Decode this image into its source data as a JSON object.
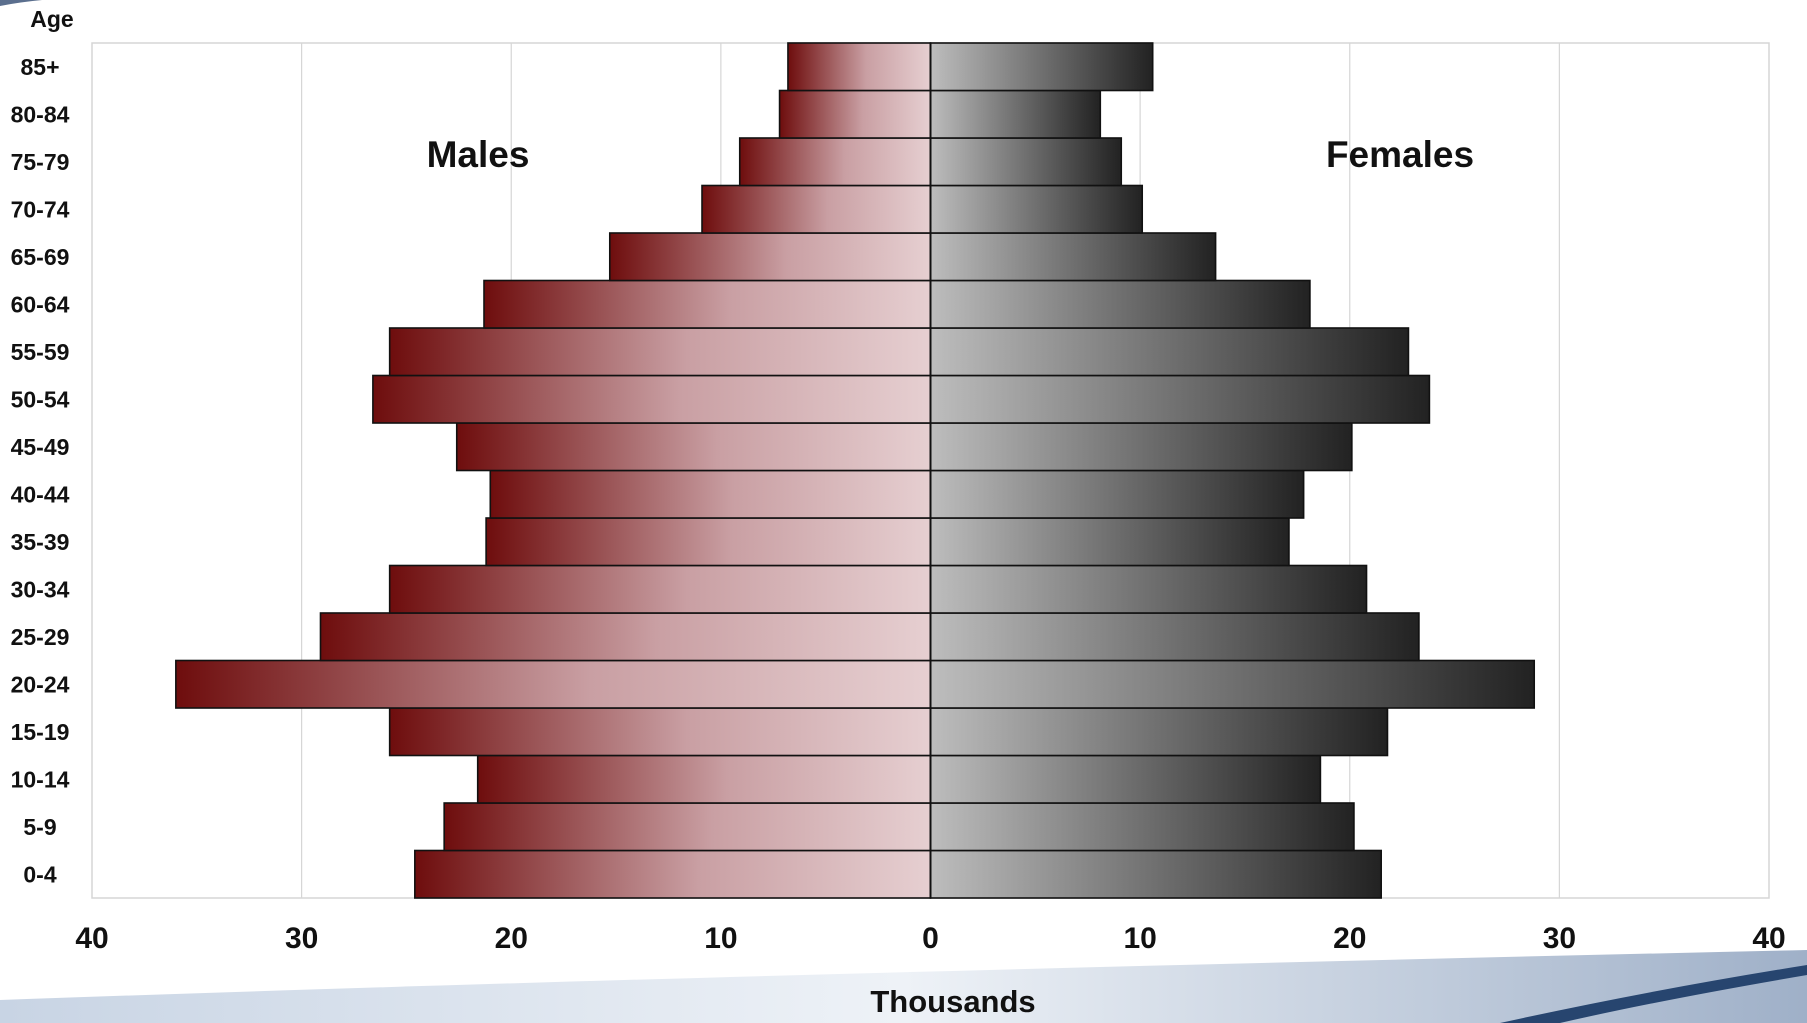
{
  "chart_data": {
    "type": "bar",
    "orientation": "horizontal",
    "variant": "population-pyramid",
    "title": "",
    "ylabel": "Age",
    "xlabel": "Thousands",
    "xlim": [
      -40,
      40
    ],
    "xticks": [
      -40,
      -30,
      -20,
      -10,
      0,
      10,
      20,
      30,
      40
    ],
    "xtick_labels": [
      "40",
      "30",
      "20",
      "10",
      "0",
      "10",
      "20",
      "30",
      "40"
    ],
    "grid": true,
    "categories": [
      "0-4",
      "5-9",
      "10-14",
      "15-19",
      "20-24",
      "25-29",
      "30-34",
      "35-39",
      "40-44",
      "45-49",
      "50-54",
      "55-59",
      "60-64",
      "65-69",
      "70-74",
      "75-79",
      "80-84",
      "85+"
    ],
    "series": [
      {
        "name": "Males",
        "color_dark": "#6e0d0d",
        "color_light": "#e6cfd1",
        "values": [
          24.6,
          23.2,
          21.6,
          25.8,
          36.0,
          29.1,
          25.8,
          21.2,
          21.0,
          22.6,
          26.6,
          25.8,
          21.3,
          15.3,
          10.9,
          9.1,
          7.2,
          6.8
        ]
      },
      {
        "name": "Females",
        "color_dark": "#222222",
        "color_light": "#bdbdbd",
        "values": [
          21.5,
          20.2,
          18.6,
          21.8,
          28.8,
          23.3,
          20.8,
          17.1,
          17.8,
          20.1,
          23.8,
          22.8,
          18.1,
          13.6,
          10.1,
          9.1,
          8.1,
          10.6
        ]
      }
    ]
  }
}
